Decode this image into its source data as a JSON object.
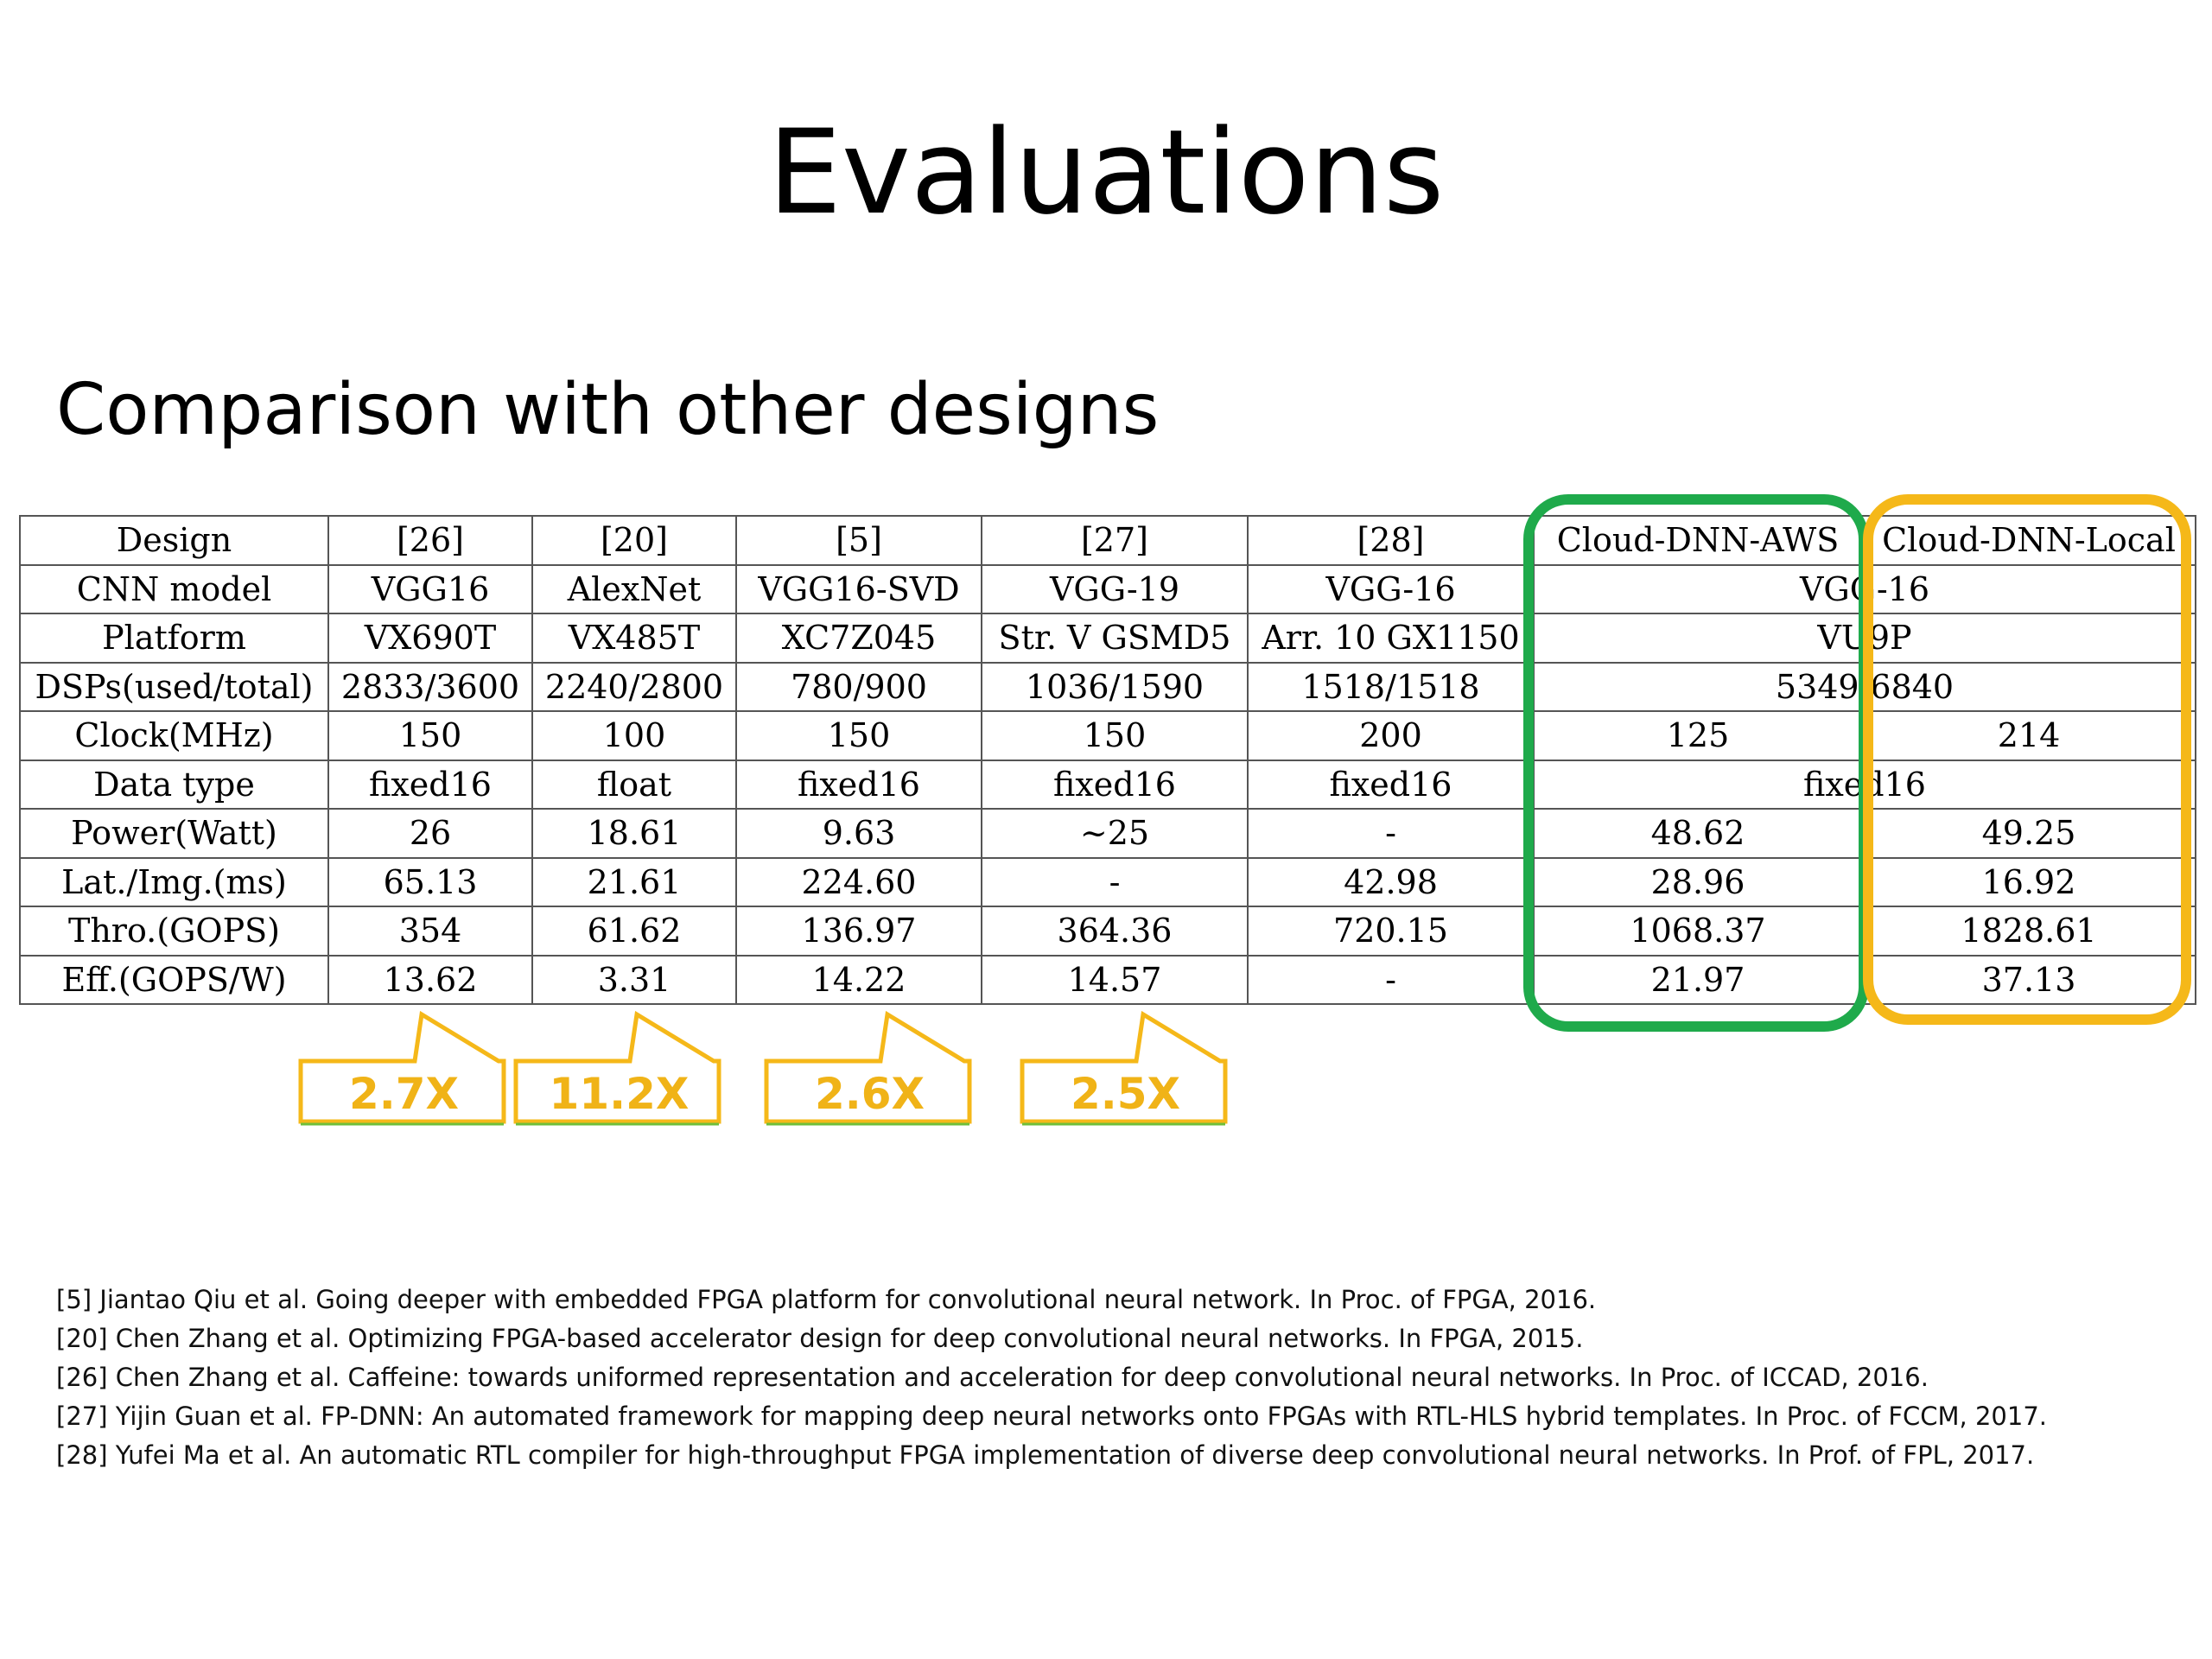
{
  "slide": {
    "title": "Evaluations",
    "subtitle": "Comparison with other designs"
  },
  "table": {
    "rows": [
      {
        "label": "Design",
        "cells": [
          "[26]",
          "[20]",
          "[5]",
          "[27]",
          "[28]",
          "Cloud-DNN-AWS",
          "Cloud-DNN-Local"
        ]
      },
      {
        "label": "CNN model",
        "cells": [
          "VGG16",
          "AlexNet",
          "VGG16-SVD",
          "VGG-19",
          "VGG-16",
          "VGG-16"
        ]
      },
      {
        "label": "Platform",
        "cells": [
          "VX690T",
          "VX485T",
          "XC7Z045",
          "Str. V GSMD5",
          "Arr. 10 GX1150",
          "VU9P"
        ]
      },
      {
        "label": "DSPs(used/total)",
        "cells": [
          "2833/3600",
          "2240/2800",
          "780/900",
          "1036/1590",
          "1518/1518",
          "5349/6840"
        ]
      },
      {
        "label": "Clock(MHz)",
        "cells": [
          "150",
          "100",
          "150",
          "150",
          "200",
          "125",
          "214"
        ]
      },
      {
        "label": "Data type",
        "cells": [
          "fixed16",
          "float",
          "fixed16",
          "fixed16",
          "fixed16",
          "fixed16"
        ]
      },
      {
        "label": "Power(Watt)",
        "cells": [
          "26",
          "18.61",
          "9.63",
          "~25",
          "-",
          "48.62",
          "49.25"
        ]
      },
      {
        "label": "Lat./Img.(ms)",
        "cells": [
          "65.13",
          "21.61",
          "224.60",
          "-",
          "42.98",
          "28.96",
          "16.92"
        ]
      },
      {
        "label": "Thro.(GOPS)",
        "cells": [
          "354",
          "61.62",
          "136.97",
          "364.36",
          "720.15",
          "1068.37",
          "1828.61"
        ]
      },
      {
        "label": "Eff.(GOPS/W)",
        "cells": [
          "13.62",
          "3.31",
          "14.22",
          "14.57",
          "-",
          "21.97",
          "37.13"
        ]
      }
    ]
  },
  "callouts": [
    {
      "text": "2.7X"
    },
    {
      "text": "11.2X"
    },
    {
      "text": "2.6X"
    },
    {
      "text": "2.5X"
    }
  ],
  "references": [
    "[5] Jiantao Qiu et al. Going deeper with embedded FPGA platform for convolutional neural network. In Proc. of FPGA, 2016.",
    "[20] Chen Zhang et al. Optimizing FPGA-based accelerator design for deep convolutional neural networks. In FPGA, 2015.",
    "[26] Chen Zhang et al. Caffeine: towards uniformed representation and acceleration for deep convolutional neural networks. In Proc. of ICCAD, 2016.",
    "[27] Yijin Guan et al. FP-DNN: An automated framework for mapping deep neural networks onto FPGAs with RTL-HLS hybrid templates. In Proc. of FCCM, 2017.",
    "[28] Yufei Ma et al. An automatic RTL compiler for high-throughput FPGA implementation of diverse deep convolutional neural networks. In Prof. of FPL, 2017."
  ],
  "colors": {
    "aws_highlight": "#1faa4b",
    "local_highlight": "#f5b819",
    "callout_stroke": "#f5b819",
    "callout_text": "#f0b317",
    "callout_underline": "#6fbf3a"
  }
}
